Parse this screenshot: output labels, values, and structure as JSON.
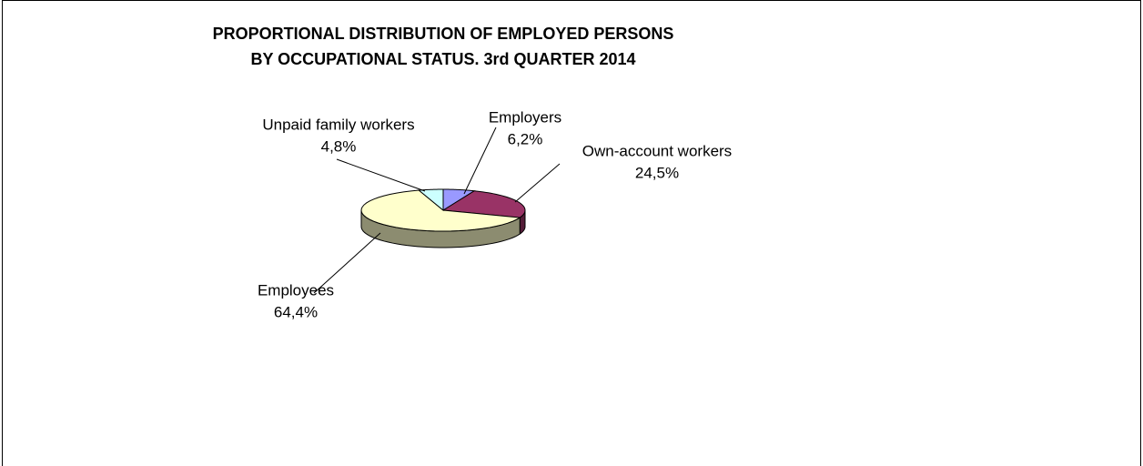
{
  "chart_data": {
    "type": "pie3d",
    "title": [
      "PROPORTIONAL DISTRIBUTION OF EMPLOYED PERSONS",
      "BY OCCUPATIONAL STATUS. 3rd QUARTER 2014"
    ],
    "categories": [
      "Employers",
      "Own-account workers",
      "Employees",
      "Unpaid family workers"
    ],
    "values": [
      6.2,
      24.5,
      64.4,
      4.8
    ],
    "value_labels": [
      "6,2%",
      "24,5%",
      "64,4%",
      "4,8%"
    ],
    "colors": [
      "#9999ff",
      "#993366",
      "#ffffcc",
      "#ccffff"
    ]
  }
}
